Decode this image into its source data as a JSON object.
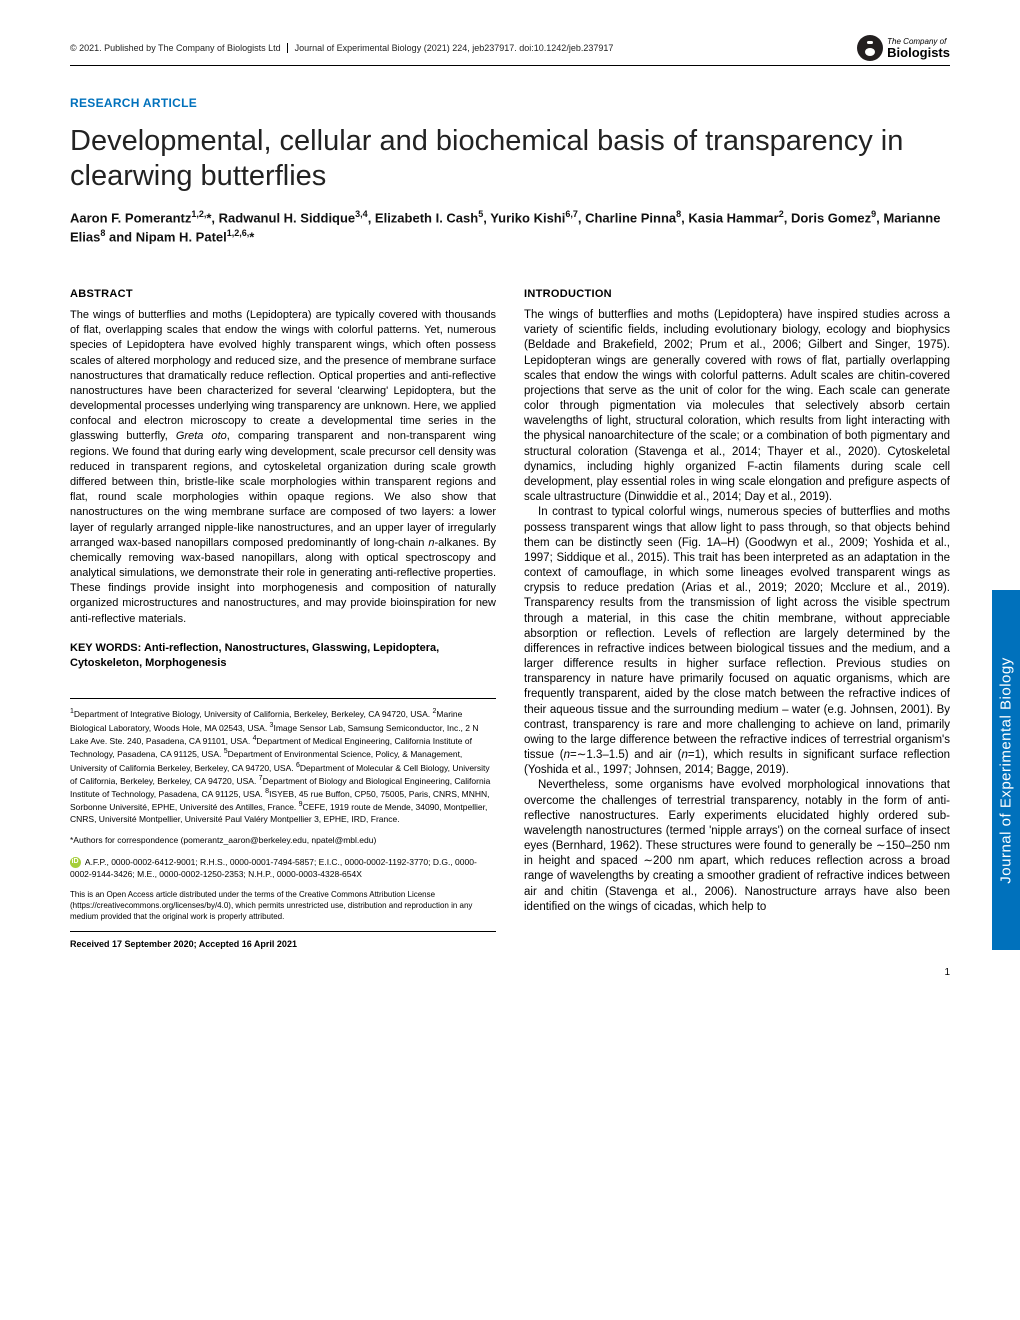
{
  "header": {
    "copyright": "© 2021. Published by The Company of Biologists Ltd",
    "journal_ref": "Journal of Experimental Biology (2021) 224, jeb237917. doi:10.1242/jeb.237917",
    "logo_top": "The Company of",
    "logo_bottom": "Biologists"
  },
  "article_type": "RESEARCH ARTICLE",
  "article_type_color": "#0071bc",
  "title": "Developmental, cellular and biochemical basis of transparency in clearwing butterflies",
  "authors_html": "Aaron F. Pomerantz<sup>1,2,</sup>*, Radwanul H. Siddique<sup>3,4</sup>, Elizabeth I. Cash<sup>5</sup>, Yuriko Kishi<sup>6,7</sup>, Charline Pinna<sup>8</sup>, Kasia Hammar<sup>2</sup>, Doris Gomez<sup>9</sup>, Marianne Elias<sup>8</sup> and Nipam H. Patel<sup>1,2,6,</sup>*",
  "abstract": {
    "heading": "ABSTRACT",
    "text": "The wings of butterflies and moths (Lepidoptera) are typically covered with thousands of flat, overlapping scales that endow the wings with colorful patterns. Yet, numerous species of Lepidoptera have evolved highly transparent wings, which often possess scales of altered morphology and reduced size, and the presence of membrane surface nanostructures that dramatically reduce reflection. Optical properties and anti-reflective nanostructures have been characterized for several 'clearwing' Lepidoptera, but the developmental processes underlying wing transparency are unknown. Here, we applied confocal and electron microscopy to create a developmental time series in the glasswing butterfly, <span class=\"italic\">Greta oto</span>, comparing transparent and non-transparent wing regions. We found that during early wing development, scale precursor cell density was reduced in transparent regions, and cytoskeletal organization during scale growth differed between thin, bristle-like scale morphologies within transparent regions and flat, round scale morphologies within opaque regions. We also show that nanostructures on the wing membrane surface are composed of two layers: a lower layer of regularly arranged nipple-like nanostructures, and an upper layer of irregularly arranged wax-based nanopillars composed predominantly of long-chain <span class=\"italic\">n</span>-alkanes. By chemically removing wax-based nanopillars, along with optical spectroscopy and analytical simulations, we demonstrate their role in generating anti-reflective properties. These findings provide insight into morphogenesis and composition of naturally organized microstructures and nanostructures, and may provide bioinspiration for new anti-reflective materials."
  },
  "keywords": {
    "label": "KEY WORDS:",
    "text": "Anti-reflection, Nanostructures, Glasswing, Lepidoptera, Cytoskeleton, Morphogenesis"
  },
  "affiliations": "<sup>1</sup>Department of Integrative Biology, University of California, Berkeley, Berkeley, CA 94720, USA. <sup>2</sup>Marine Biological Laboratory, Woods Hole, MA 02543, USA. <sup>3</sup>Image Sensor Lab, Samsung Semiconductor, Inc., 2 N Lake Ave. Ste. 240, Pasadena, CA 91101, USA. <sup>4</sup>Department of Medical Engineering, California Institute of Technology, Pasadena, CA 91125, USA. <sup>5</sup>Department of Environmental Science, Policy, & Management, University of California Berkeley, Berkeley, CA 94720, USA. <sup>6</sup>Department of Molecular & Cell Biology, University of California, Berkeley, Berkeley, CA 94720, USA. <sup>7</sup>Department of Biology and Biological Engineering, California Institute of Technology, Pasadena, CA 91125, USA. <sup>8</sup>ISYEB, 45 rue Buffon, CP50, 75005, Paris, CNRS, MNHN, Sorbonne Université, EPHE, Université des Antilles, France. <sup>9</sup>CEFE, 1919 route de Mende, 34090, Montpellier, CNRS, Université Montpellier, Université Paul Valéry Montpellier 3, EPHE, IRD, France.",
  "correspondence": "*Authors for correspondence (pomerantz_aaron@berkeley.edu, npatel@mbl.edu)",
  "orcid": "A.F.P., 0000-0002-6412-9001; R.H.S., 0000-0001-7494-5857; E.I.C., 0000-0002-1192-3770; D.G., 0000-0002-9144-3426; M.E., 0000-0002-1250-2353; N.H.P., 0000-0003-4328-654X",
  "license": "This is an Open Access article distributed under the terms of the Creative Commons Attribution License (https://creativecommons.org/licenses/by/4.0), which permits unrestricted use, distribution and reproduction in any medium provided that the original work is properly attributed.",
  "received": "Received 17 September 2020; Accepted 16 April 2021",
  "introduction": {
    "heading": "INTRODUCTION",
    "paragraphs": [
      "The wings of butterflies and moths (Lepidoptera) have inspired studies across a variety of scientific fields, including evolutionary biology, ecology and biophysics (Beldade and Brakefield, 2002; Prum et al., 2006; Gilbert and Singer, 1975). Lepidopteran wings are generally covered with rows of flat, partially overlapping scales that endow the wings with colorful patterns. Adult scales are chitin-covered projections that serve as the unit of color for the wing. Each scale can generate color through pigmentation via molecules that selectively absorb certain wavelengths of light, structural coloration, which results from light interacting with the physical nanoarchitecture of the scale; or a combination of both pigmentary and structural coloration (Stavenga et al., 2014; Thayer et al., 2020). Cytoskeletal dynamics, including highly organized F-actin filaments during scale cell development, play essential roles in wing scale elongation and prefigure aspects of scale ultrastructure (Dinwiddie et al., 2014; Day et al., 2019).",
      "In contrast to typical colorful wings, numerous species of butterflies and moths possess transparent wings that allow light to pass through, so that objects behind them can be distinctly seen (Fig. 1A–H) (Goodwyn et al., 2009; Yoshida et al., 1997; Siddique et al., 2015). This trait has been interpreted as an adaptation in the context of camouflage, in which some lineages evolved transparent wings as crypsis to reduce predation (Arias et al., 2019; 2020; Mcclure et al., 2019). Transparency results from the transmission of light across the visible spectrum through a material, in this case the chitin membrane, without appreciable absorption or reflection. Levels of reflection are largely determined by the differences in refractive indices between biological tissues and the medium, and a larger difference results in higher surface reflection. Previous studies on transparency in nature have primarily focused on aquatic organisms, which are frequently transparent, aided by the close match between the refractive indices of their aqueous tissue and the surrounding medium – water (e.g. Johnsen, 2001). By contrast, transparency is rare and more challenging to achieve on land, primarily owing to the large difference between the refractive indices of terrestrial organism's tissue (<span class=\"italic\">n</span>=∼1.3–1.5) and air (<span class=\"italic\">n</span>=1), which results in significant surface reflection (Yoshida et al., 1997; Johnsen, 2014; Bagge, 2019).",
      "Nevertheless, some organisms have evolved morphological innovations that overcome the challenges of terrestrial transparency, notably in the form of anti-reflective nanostructures. Early experiments elucidated highly ordered sub-wavelength nanostructures (termed 'nipple arrays') on the corneal surface of insect eyes (Bernhard, 1962). These structures were found to generally be ∼150–250 nm in height and spaced ∼200 nm apart, which reduces reflection across a broad range of wavelengths by creating a smoother gradient of refractive indices between air and chitin (Stavenga et al., 2006). Nanostructure arrays have also been identified on the wings of cicadas, which help to"
    ]
  },
  "side_tab": {
    "text": "Journal of Experimental Biology",
    "bg_color": "#0071bc"
  },
  "page_number": "1"
}
